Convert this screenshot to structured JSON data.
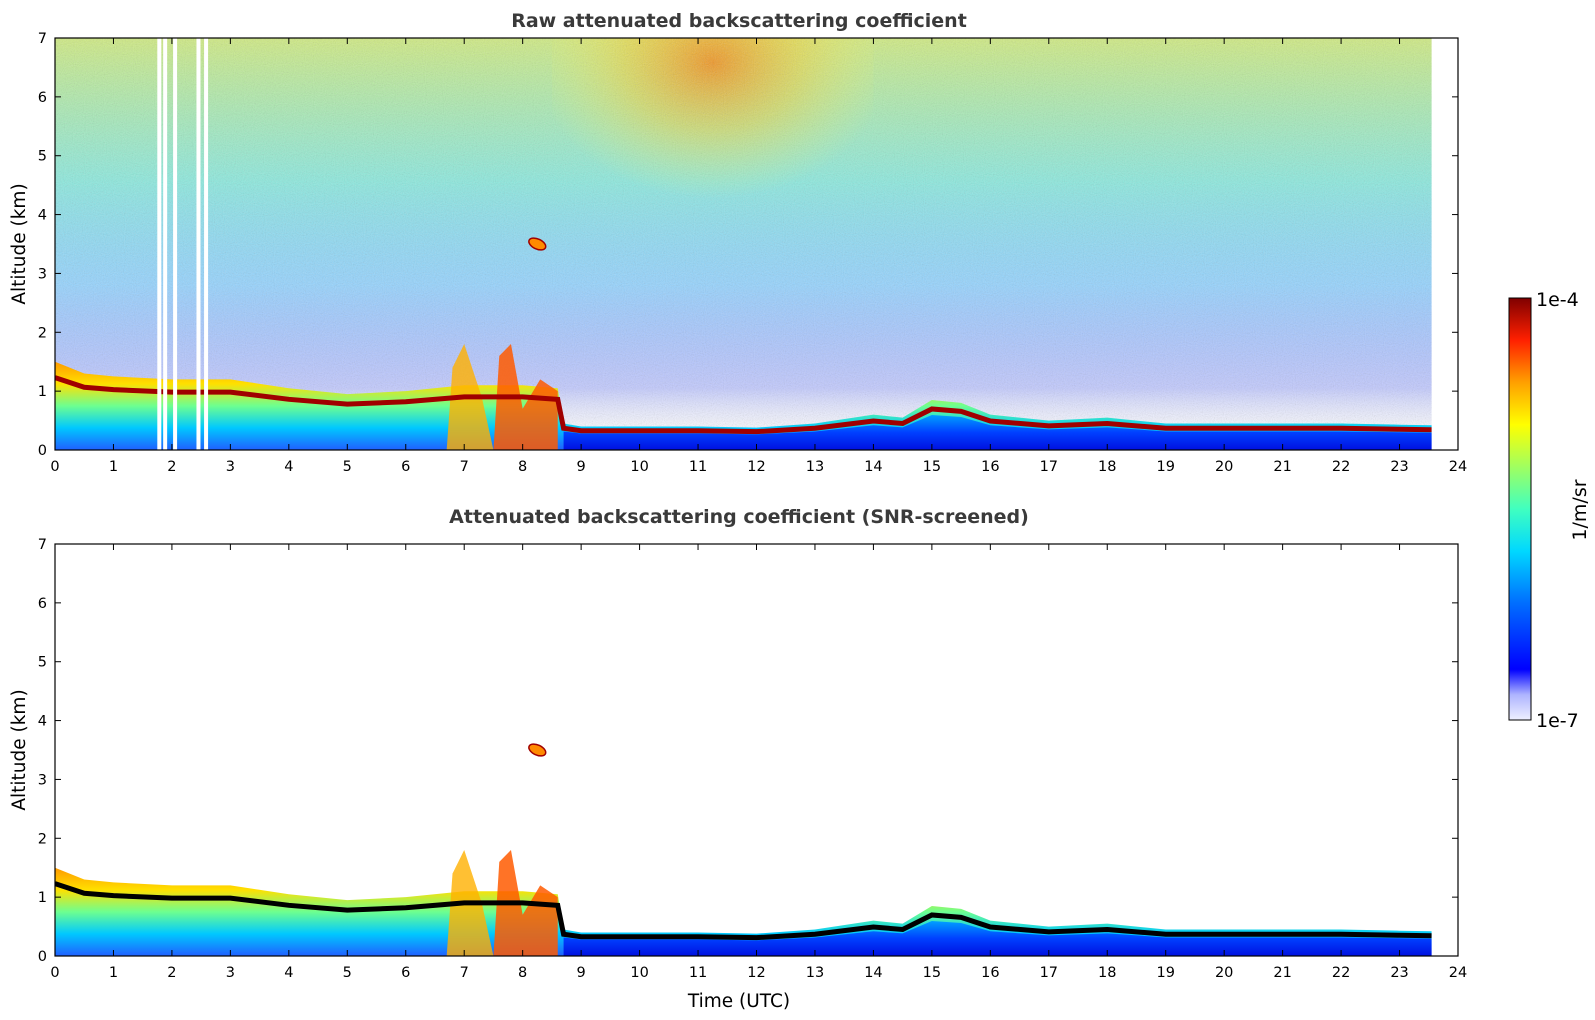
{
  "chart_data": [
    {
      "type": "heatmap",
      "title": "Raw attenuated backscattering coefficient",
      "xlabel": "",
      "ylabel": "Altitude (km)",
      "xlim": [
        0,
        24
      ],
      "ylim": [
        0,
        7
      ],
      "xticks": [
        "0",
        "1",
        "2",
        "3",
        "4",
        "5",
        "6",
        "7",
        "8",
        "9",
        "10",
        "11",
        "12",
        "13",
        "14",
        "15",
        "16",
        "17",
        "18",
        "19",
        "20",
        "21",
        "22",
        "23",
        "24"
      ],
      "yticks": [
        "0",
        "1",
        "2",
        "3",
        "4",
        "5",
        "6",
        "7"
      ],
      "data_end_time": 23.55,
      "boundary_layer_top_km": [
        [
          0,
          1.5
        ],
        [
          0.5,
          1.3
        ],
        [
          1,
          1.25
        ],
        [
          2,
          1.2
        ],
        [
          3,
          1.2
        ],
        [
          4,
          1.05
        ],
        [
          5,
          0.95
        ],
        [
          6,
          1.0
        ],
        [
          7,
          1.1
        ],
        [
          8,
          1.1
        ],
        [
          8.6,
          1.05
        ],
        [
          8.7,
          0.45
        ],
        [
          9,
          0.4
        ],
        [
          10,
          0.4
        ],
        [
          11,
          0.4
        ],
        [
          12,
          0.38
        ],
        [
          13,
          0.45
        ],
        [
          14,
          0.6
        ],
        [
          14.5,
          0.55
        ],
        [
          15,
          0.85
        ],
        [
          15.5,
          0.8
        ],
        [
          16,
          0.6
        ],
        [
          17,
          0.5
        ],
        [
          18,
          0.55
        ],
        [
          19,
          0.45
        ],
        [
          20,
          0.45
        ],
        [
          21,
          0.45
        ],
        [
          22,
          0.45
        ],
        [
          23,
          0.43
        ],
        [
          23.55,
          0.42
        ]
      ],
      "isolated_layer": {
        "time": 8.25,
        "altitude_km": 3.5
      },
      "colorscale": "jet"
    },
    {
      "type": "heatmap",
      "title": "Attenuated backscattering coefficient (SNR-screened)",
      "xlabel": "Time (UTC)",
      "ylabel": "Altitude (km)",
      "xlim": [
        0,
        24
      ],
      "ylim": [
        0,
        7
      ],
      "xticks": [
        "0",
        "1",
        "2",
        "3",
        "4",
        "5",
        "6",
        "7",
        "8",
        "9",
        "10",
        "11",
        "12",
        "13",
        "14",
        "15",
        "16",
        "17",
        "18",
        "19",
        "20",
        "21",
        "22",
        "23",
        "24"
      ],
      "yticks": [
        "0",
        "1",
        "2",
        "3",
        "4",
        "5",
        "6",
        "7"
      ],
      "data_end_time": 23.55,
      "colorscale": "jet"
    }
  ],
  "colorbar": {
    "max_label": "1e-4",
    "min_label": "1e-7",
    "unit_label": "1/m/sr",
    "colors": [
      "#e8e8ff",
      "#b0b0ff",
      "#0000ff",
      "#0066ff",
      "#00ccff",
      "#33ffcc",
      "#99ff66",
      "#ffff00",
      "#ffaa00",
      "#ff4400",
      "#cc0000",
      "#800000"
    ]
  }
}
